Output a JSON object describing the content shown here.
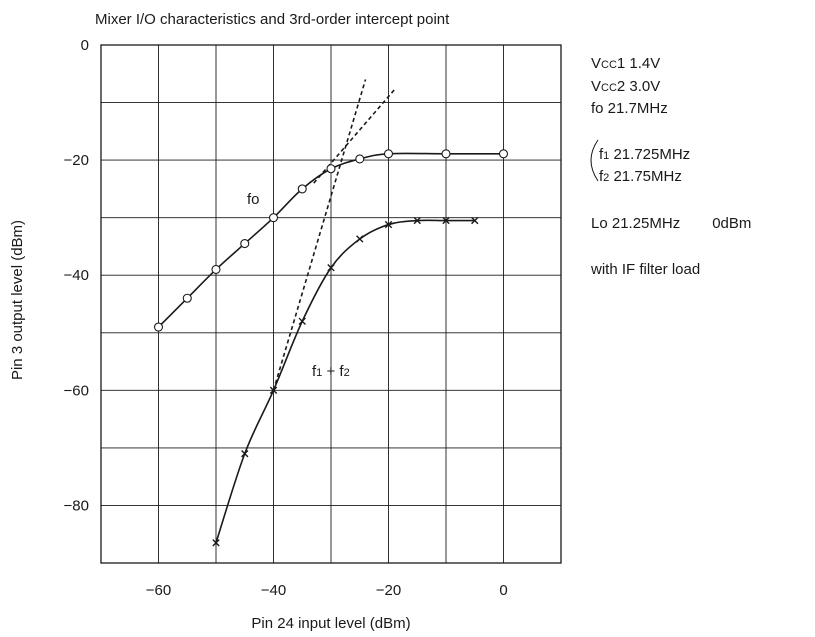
{
  "chart_data": {
    "type": "line",
    "title": "Mixer I/O characteristics and 3rd-order intercept point",
    "xlabel": "Pin 24 input level (dBm)",
    "ylabel": "Pin 3 output level (dBm)",
    "xlim": [
      -70,
      10
    ],
    "ylim": [
      -90,
      0
    ],
    "xticks": [
      -60,
      -40,
      -20,
      0
    ],
    "yticks": [
      0,
      -20,
      -40,
      -60,
      -80
    ],
    "grid": true,
    "series": [
      {
        "name": "fo",
        "marker": "circle",
        "x": [
          -60,
          -55,
          -50,
          -45,
          -40,
          -35,
          -30,
          -25,
          -20,
          -10,
          0
        ],
        "y": [
          -49,
          -44,
          -39,
          -34.5,
          -30,
          -25,
          -21.5,
          -19.8,
          -18.9,
          -18.9,
          -18.9
        ]
      },
      {
        "name": "f1 + f2",
        "marker": "cross",
        "x": [
          -50,
          -45,
          -40,
          -35,
          -30,
          -25,
          -20,
          -15,
          -10,
          -5
        ],
        "y": [
          -86.5,
          -71,
          -60,
          -48,
          -38.7,
          -33.7,
          -31.2,
          -30.5,
          -30.5,
          -30.5
        ]
      }
    ],
    "extrapolations": [
      {
        "x": [
          -40,
          -24
        ],
        "y": [
          -60,
          -6
        ]
      },
      {
        "x": [
          -33,
          -19
        ],
        "y": [
          -24,
          -7.8
        ]
      }
    ],
    "annotations": {
      "fo_label": "fo",
      "f_label_main": "f",
      "f_label_sub1": "1",
      "f_label_plus": " + f",
      "f_label_sub2": "2"
    },
    "conditions": {
      "vcc1_v": "V",
      "vcc1_cc": "CC",
      "vcc1_rest": "1  1.4V",
      "vcc2_v": "V",
      "vcc2_cc": "CC",
      "vcc2_rest": "2  3.0V",
      "fo": "fo  21.7MHz",
      "f1_f": "f",
      "f1_sub": "1",
      "f1_val": "  21.725MHz",
      "f2_f": "f",
      "f2_sub": "2",
      "f2_val": "  21.75MHz",
      "lo": "Lo  21.25MHz",
      "lo_level": "0dBm",
      "load": "with IF filter load"
    }
  }
}
